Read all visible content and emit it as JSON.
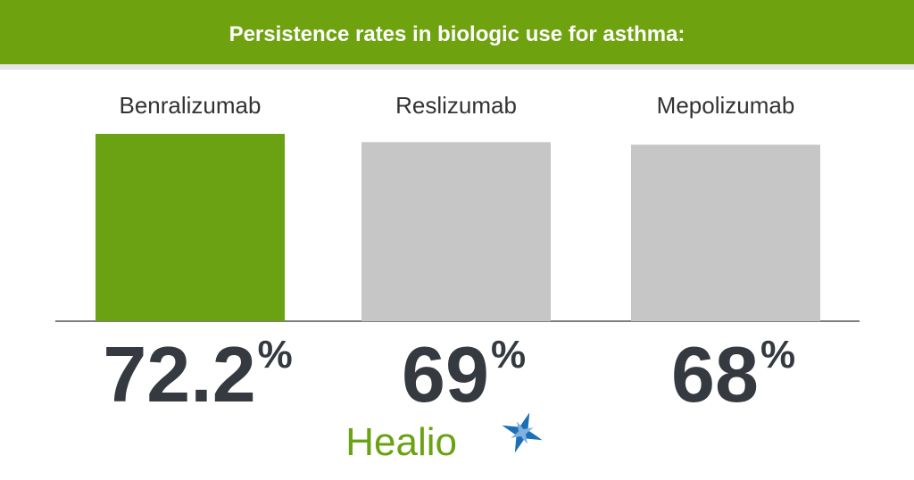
{
  "chart_data": {
    "type": "bar",
    "title": "Persistence rates in biologic use for asthma:",
    "categories": [
      "Benralizumab",
      "Reslizumab",
      "Mepolizumab"
    ],
    "values": [
      72.2,
      69,
      68
    ],
    "unit": "%",
    "colors": [
      "#6ba213",
      "#c6c6c6",
      "#c6c6c6"
    ],
    "logo": "Healio"
  }
}
